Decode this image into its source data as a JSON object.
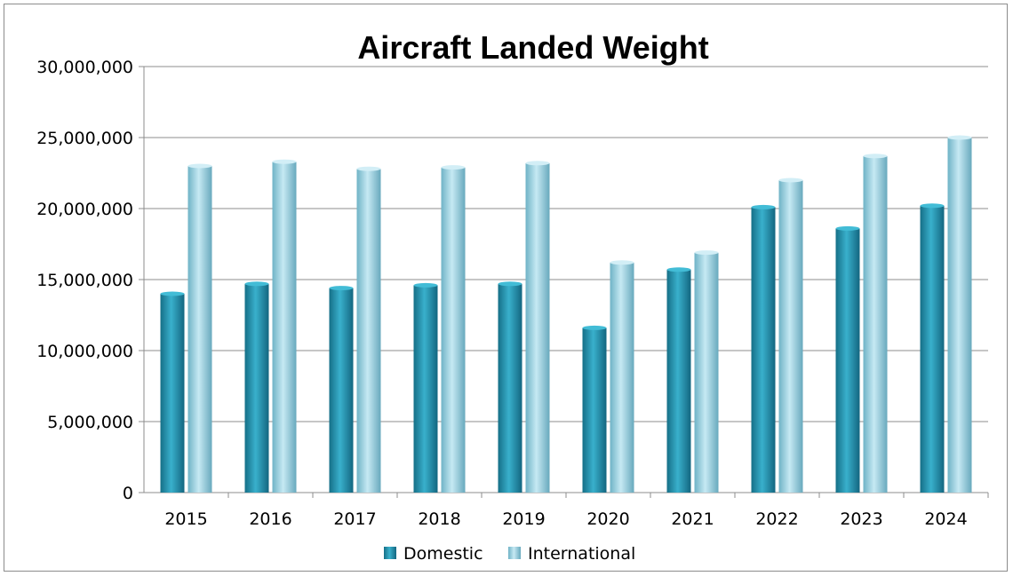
{
  "chart_data": {
    "type": "bar",
    "title": "Aircraft Landed Weight",
    "xlabel": "",
    "ylabel": "",
    "categories": [
      "2015",
      "2016",
      "2017",
      "2018",
      "2019",
      "2020",
      "2021",
      "2022",
      "2023",
      "2024"
    ],
    "series": [
      {
        "name": "Domestic",
        "color": "#1e8eaa",
        "values": [
          14000000,
          14700000,
          14400000,
          14600000,
          14700000,
          11600000,
          15700000,
          20100000,
          18600000,
          20200000
        ]
      },
      {
        "name": "International",
        "color": "#8fcde0",
        "values": [
          23000000,
          23300000,
          22800000,
          22900000,
          23200000,
          16200000,
          16900000,
          22000000,
          23700000,
          25000000
        ]
      }
    ],
    "ylim": [
      0,
      30000000
    ],
    "yticks": [
      0,
      5000000,
      10000000,
      15000000,
      20000000,
      25000000,
      30000000
    ],
    "ytick_labels": [
      "0",
      "5,000,000",
      "10,000,000",
      "15,000,000",
      "20,000,000",
      "25,000,000",
      "30,000,000"
    ],
    "grid": true,
    "legend_position": "bottom"
  }
}
